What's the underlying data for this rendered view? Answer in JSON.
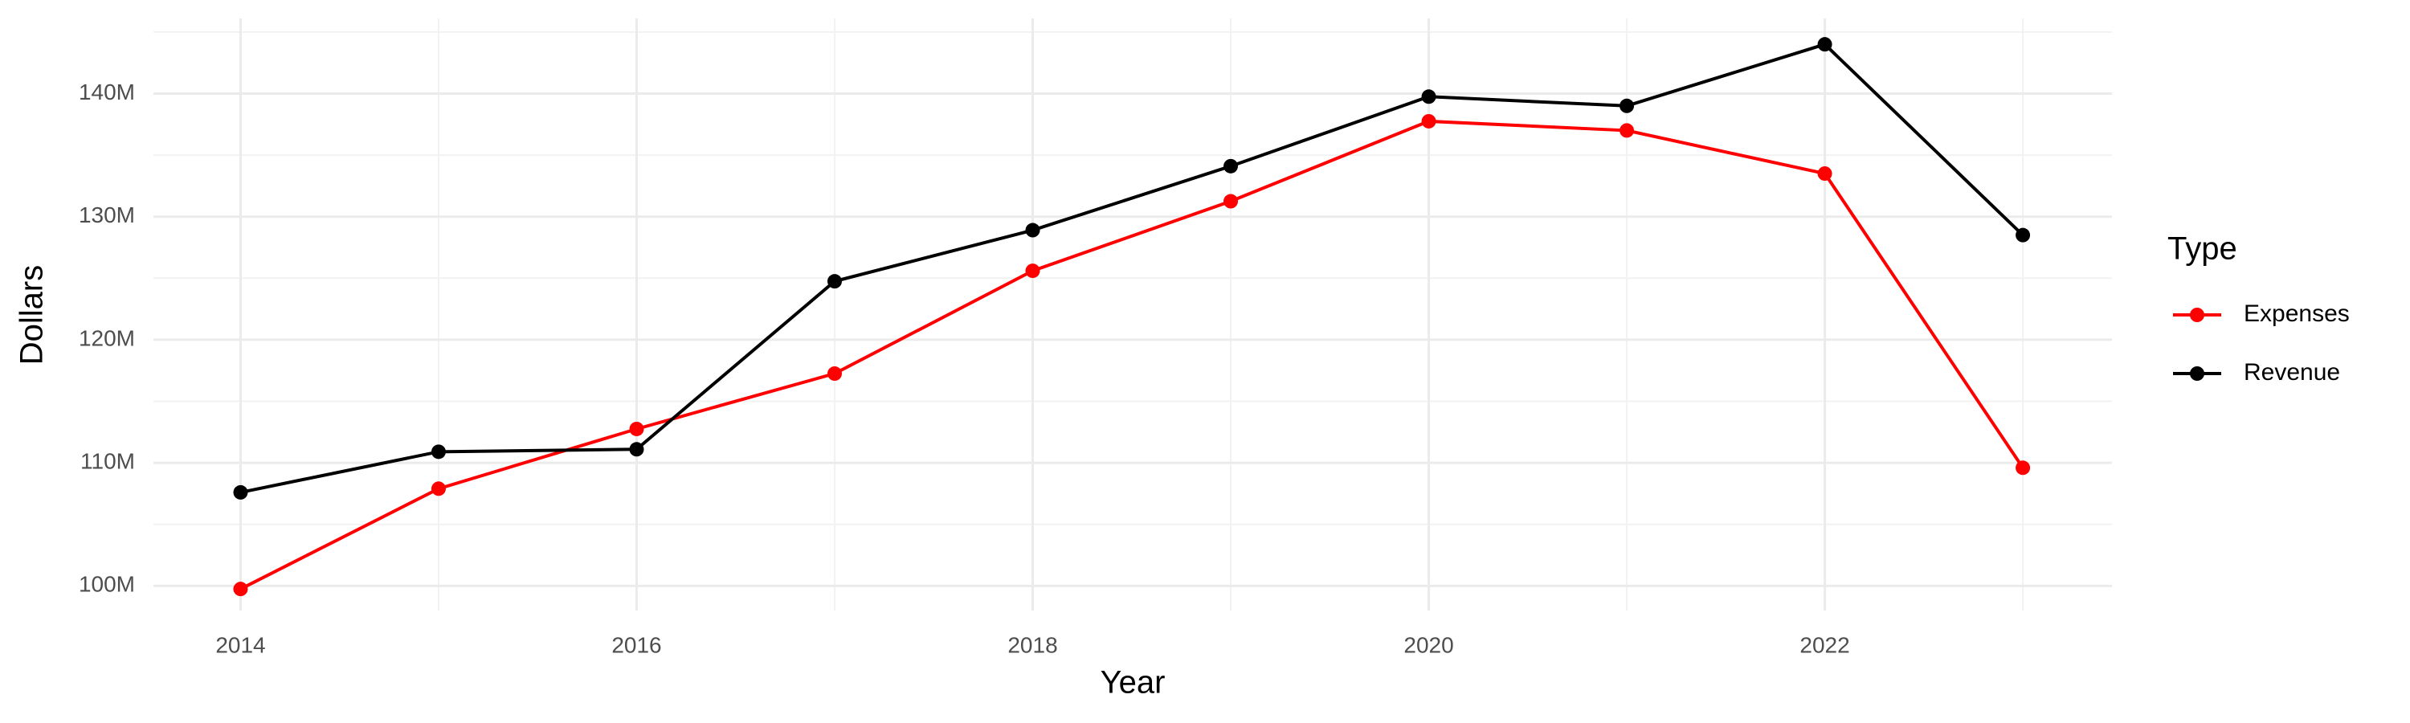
{
  "chart_data": {
    "type": "line",
    "x_label": "Year",
    "y_label": "Dollars",
    "legend_title": "Type",
    "legend": "right",
    "x": [
      2014,
      2015,
      2016,
      2017,
      2018,
      2019,
      2020,
      2021,
      2022,
      2023
    ],
    "series": [
      {
        "name": "Expenses",
        "color": "#ff0000",
        "values": [
          99750000,
          107900000,
          112750000,
          117250000,
          125600000,
          131250000,
          137750000,
          137000000,
          133500000,
          109600000
        ]
      },
      {
        "name": "Revenue",
        "color": "#000000",
        "values": [
          107600000,
          110900000,
          111100000,
          124750000,
          128900000,
          134100000,
          139750000,
          139000000,
          144000000,
          128500000
        ]
      }
    ],
    "xlim": [
      2013.56,
      2023.45
    ],
    "xticks": [
      2014,
      2016,
      2018,
      2020,
      2022
    ],
    "x_minor_ticks": [
      2015,
      2017,
      2019,
      2021,
      2023
    ],
    "ylim": [
      98000000,
      146100000
    ],
    "yticks": [
      {
        "value": 100000000,
        "label": "100M"
      },
      {
        "value": 110000000,
        "label": "110M"
      },
      {
        "value": 120000000,
        "label": "120M"
      },
      {
        "value": 130000000,
        "label": "130M"
      },
      {
        "value": 140000000,
        "label": "140M"
      }
    ],
    "y_minor_ticks": [
      105000000,
      115000000,
      125000000,
      135000000,
      145000000
    ],
    "grid": true
  }
}
